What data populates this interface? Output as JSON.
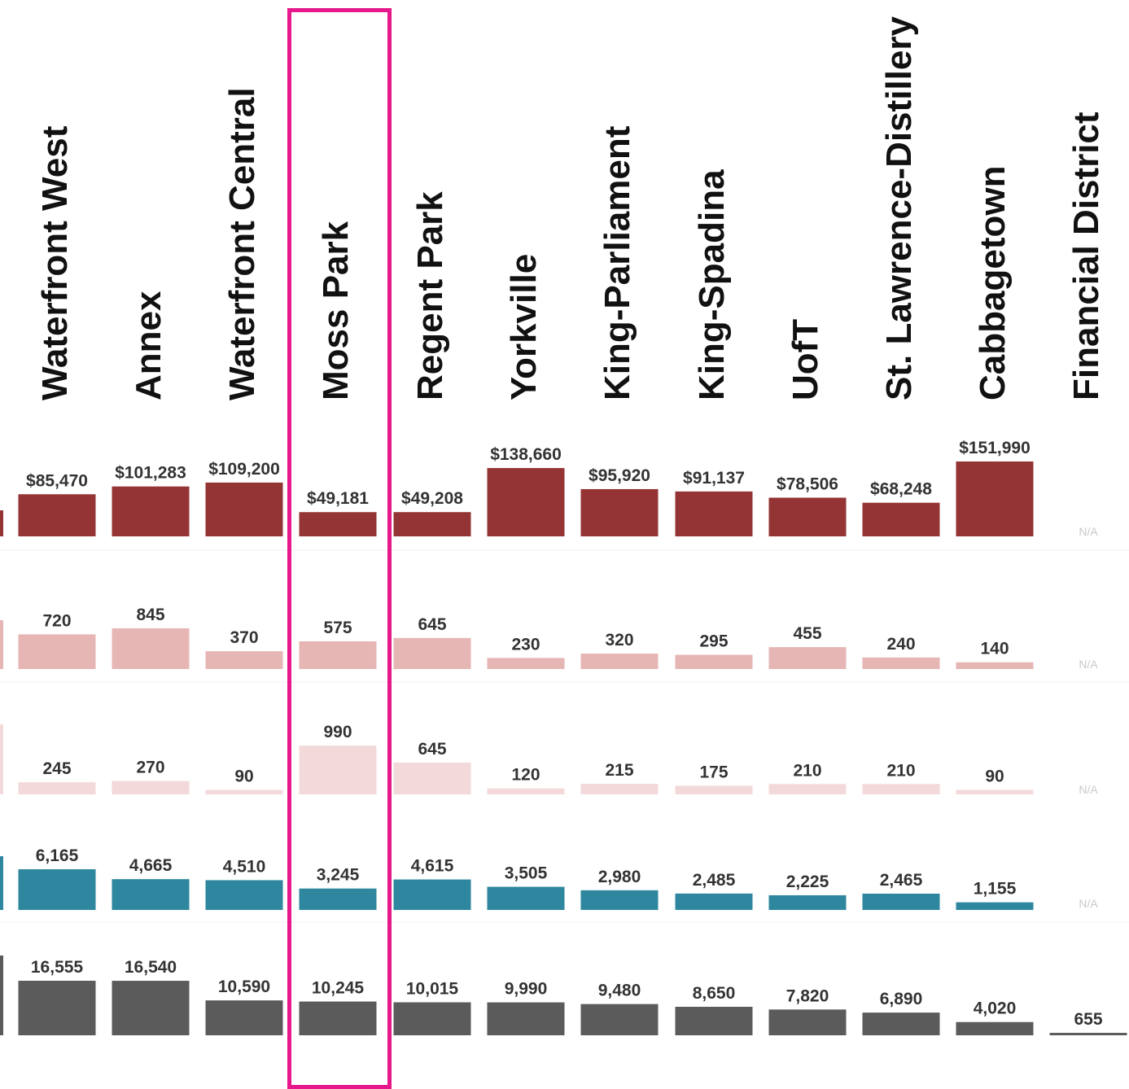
{
  "chart_data": {
    "type": "bar",
    "title": "",
    "categories": [
      "Waterfront West",
      "Annex",
      "Waterfront Central",
      "Moss Park",
      "Regent Park",
      "Yorkville",
      "King-Parliament",
      "King-Spadina",
      "UofT",
      "St. Lawrence-Distillery",
      "Cabbagetown",
      "Financial District"
    ],
    "highlighted_category": "Moss Park",
    "series": [
      {
        "labels": [
          "$85,470",
          "$101,283",
          "$109,200",
          "$49,181",
          "$49,208",
          "$138,660",
          "$95,920",
          "$91,137",
          "$78,506",
          "$68,248",
          "$151,990",
          "N/A"
        ],
        "values": [
          85470,
          101283,
          109200,
          49181,
          49208,
          138660,
          95920,
          91137,
          78506,
          68248,
          151990,
          null
        ],
        "ylim": [
          0,
          152000
        ],
        "color": "#943434"
      },
      {
        "labels": [
          "720",
          "845",
          "370",
          "575",
          "645",
          "230",
          "320",
          "295",
          "455",
          "240",
          "140",
          "N/A"
        ],
        "values": [
          720,
          845,
          370,
          575,
          645,
          230,
          320,
          295,
          455,
          240,
          140,
          null
        ],
        "ylim": [
          0,
          845
        ],
        "color": "#e6b6b5"
      },
      {
        "labels": [
          "245",
          "270",
          "90",
          "990",
          "645",
          "120",
          "215",
          "175",
          "210",
          "210",
          "90",
          "N/A"
        ],
        "values": [
          245,
          270,
          90,
          990,
          645,
          120,
          215,
          175,
          210,
          210,
          90,
          null
        ],
        "ylim": [
          0,
          990
        ],
        "color": "#f3d9d9"
      },
      {
        "labels": [
          "6,165",
          "4,665",
          "4,510",
          "3,245",
          "4,615",
          "3,505",
          "2,980",
          "2,485",
          "2,225",
          "2,465",
          "1,155",
          "N/A"
        ],
        "values": [
          6165,
          4665,
          4510,
          3245,
          4615,
          3505,
          2980,
          2485,
          2225,
          2465,
          1155,
          null
        ],
        "ylim": [
          0,
          6165
        ],
        "color": "#2e879e"
      },
      {
        "labels": [
          "16,555",
          "16,540",
          "10,590",
          "10,245",
          "10,015",
          "9,990",
          "9,480",
          "8,650",
          "7,820",
          "6,890",
          "4,020",
          "655"
        ],
        "values": [
          16555,
          16540,
          10590,
          10245,
          10015,
          9990,
          9480,
          8650,
          7820,
          6890,
          4020,
          655
        ],
        "ylim": [
          0,
          16555
        ],
        "color": "#5b5b5b"
      }
    ],
    "grid": false,
    "legend": "none"
  }
}
